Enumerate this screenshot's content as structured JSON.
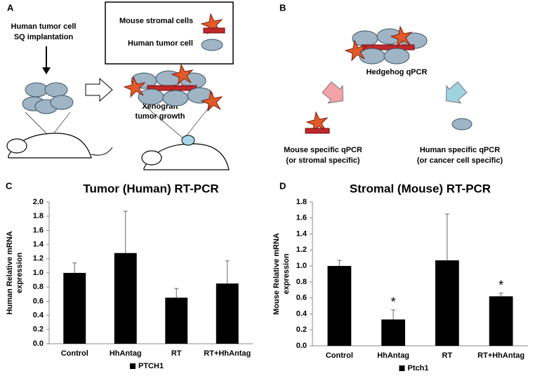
{
  "panel_a": {
    "label": "A",
    "implantation": [
      "Human tumor cell",
      "SQ implantation"
    ],
    "legend": [
      "Mouse stromal cells",
      "Human tumor cell"
    ],
    "growth": [
      "Xenograft",
      "tumor growth"
    ]
  },
  "panel_b": {
    "label": "B",
    "center": "Hedgehog qPCR",
    "left": [
      "Mouse specific qPCR",
      "(or stromal specific)"
    ],
    "right": [
      "Human specific qPCR",
      "(or cancer cell specific)"
    ]
  },
  "chart_data": [
    {
      "type": "bar",
      "label": "C",
      "title": "Tumor (Human) RT-PCR",
      "y_label": [
        "Human Relative mRNA",
        "expression"
      ],
      "categories": [
        "Control",
        "HhAntag",
        "RT",
        "RT+HhAntag"
      ],
      "series": [
        {
          "name": "PTCH1",
          "color": "#000000",
          "values": [
            1.0,
            1.28,
            0.65,
            0.85
          ],
          "errors": [
            0.14,
            0.59,
            0.13,
            0.32
          ]
        }
      ],
      "annotations": [
        null,
        null,
        null,
        null
      ],
      "ylim": [
        0,
        2
      ],
      "yticks": [
        {
          "value": 0,
          "label": "0.0"
        },
        0.2,
        0.4,
        0.6,
        0.8,
        {
          "value": 1,
          "label": "1.0"
        },
        1.2,
        1.4,
        1.6,
        1.8,
        {
          "value": 2,
          "label": "2.0"
        }
      ],
      "grid": false,
      "legend": "bottom"
    },
    {
      "type": "bar",
      "label": "D",
      "title": "Stromal (Mouse) RT-PCR",
      "y_label": [
        "Mouse Relative mRNA",
        "expression"
      ],
      "categories": [
        "Control",
        "HhAntag",
        "RT",
        "RT+HhAntag"
      ],
      "series": [
        {
          "name": "Ptch1",
          "color": "#000000",
          "values": [
            1.0,
            0.33,
            1.07,
            0.62
          ],
          "errors": [
            0.07,
            0.12,
            0.58,
            0.04
          ]
        }
      ],
      "annotations": [
        null,
        "*",
        null,
        "*"
      ],
      "ylim": [
        0,
        1.8
      ],
      "yticks": [
        {
          "value": 0,
          "label": "0.0"
        },
        0.2,
        0.4,
        0.6,
        0.8,
        {
          "value": 1,
          "label": "1.0"
        },
        1.2,
        1.4,
        1.6,
        1.8
      ],
      "grid": false,
      "legend": "bottom"
    }
  ]
}
